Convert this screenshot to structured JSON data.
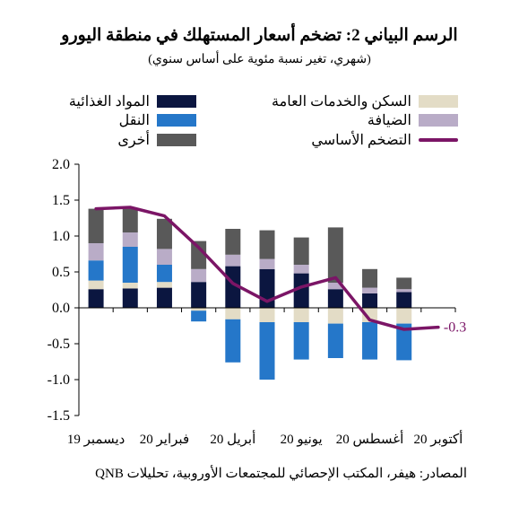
{
  "title": "الرسم البياني 2: تضخم أسعار المستهلك في منطقة اليورو",
  "subtitle": "(شهري، تغير نسبة مئوية على أساس سنوي)",
  "source": "المصادر: هيفر، المكتب الإحصائي للمجتمعات الأوروبية، تحليلات QNB",
  "colors": {
    "food": "#0b1640",
    "housing": "#e3dcc6",
    "transport": "#2577c9",
    "hospitality": "#b9acc7",
    "other": "#595959",
    "core": "#7b1566"
  },
  "legend": [
    {
      "key": "housing",
      "label": "السكن والخدمات العامة",
      "kind": "bar"
    },
    {
      "key": "food",
      "label": "المواد الغذائية",
      "kind": "bar"
    },
    {
      "key": "hospitality",
      "label": "الضيافة",
      "kind": "bar"
    },
    {
      "key": "transport",
      "label": "النقل",
      "kind": "bar"
    },
    {
      "key": "core",
      "label": "التضخم الأساسي",
      "kind": "line"
    },
    {
      "key": "other",
      "label": "أخرى",
      "kind": "bar"
    }
  ],
  "chart_data": {
    "type": "bar",
    "stacked": true,
    "categories": [
      "ديسمبر 19",
      "",
      "فبراير 20",
      "",
      "أبريل 20",
      "",
      "يونيو 20",
      "",
      "أغسطس 20",
      "",
      "أكتوبر 20"
    ],
    "x_tick_labels": [
      "ديسمبر 19",
      "فبراير 20",
      "أبريل 20",
      "يونيو 20",
      "أغسطس 20",
      "أكتوبر 20"
    ],
    "ylim": [
      -1.5,
      2.0
    ],
    "yticks": [
      "2.0",
      "1.5",
      "1.0",
      "0.5",
      "0.0",
      "-0.5",
      "-1.0",
      "-1.5"
    ],
    "grid": false,
    "series": [
      {
        "key": "food",
        "name": "المواد الغذائية",
        "values": [
          0.26,
          0.27,
          0.28,
          0.36,
          0.58,
          0.54,
          0.48,
          0.26,
          0.2,
          0.22,
          0.0
        ]
      },
      {
        "key": "housing",
        "name": "السكن والخدمات العامة",
        "values": [
          0.12,
          0.08,
          0.08,
          -0.04,
          -0.16,
          -0.2,
          -0.2,
          -0.22,
          -0.2,
          -0.22,
          0.0
        ]
      },
      {
        "key": "transport",
        "name": "النقل",
        "values": [
          0.28,
          0.5,
          0.24,
          -0.15,
          -0.6,
          -0.8,
          -0.52,
          -0.48,
          -0.52,
          -0.51,
          0.0
        ]
      },
      {
        "key": "hospitality",
        "name": "الضيافة",
        "values": [
          0.24,
          0.2,
          0.22,
          0.18,
          0.16,
          0.14,
          0.12,
          0.09,
          0.08,
          0.04,
          0.0
        ]
      },
      {
        "key": "other",
        "name": "أخرى",
        "values": [
          0.48,
          0.33,
          0.42,
          0.39,
          0.36,
          0.4,
          0.38,
          0.77,
          0.26,
          0.16,
          0.0
        ]
      }
    ],
    "line": {
      "key": "core",
      "name": "التضخم الأساسي",
      "values": [
        1.38,
        1.4,
        1.28,
        0.84,
        0.34,
        0.09,
        0.29,
        0.42,
        -0.17,
        -0.3,
        -0.27
      ]
    },
    "end_label": "-0.3"
  }
}
